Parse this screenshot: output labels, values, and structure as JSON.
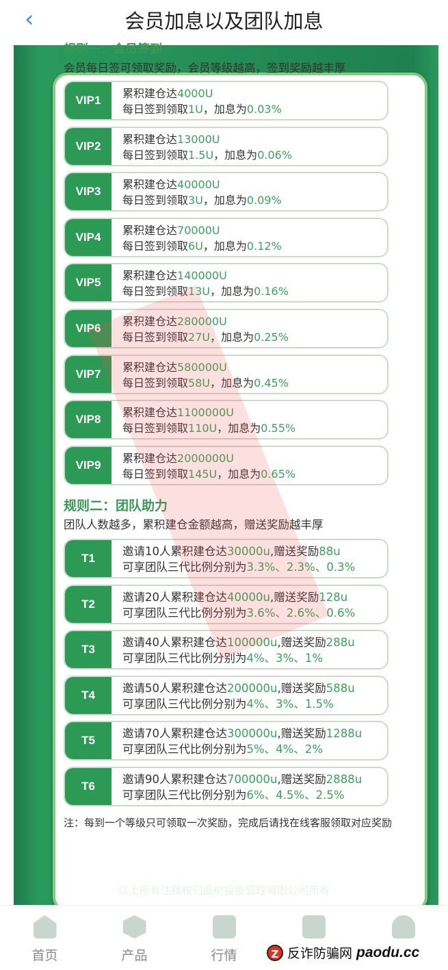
{
  "header": {
    "back_icon": "chevron-left-icon",
    "title": "会员加息以及团队加息"
  },
  "colors": {
    "accent": "#2c9a55",
    "highlight": "#3aa35c",
    "background": "#1f7a4c"
  },
  "rule1": {
    "heading": "规则一：会员签到",
    "desc": "会员每日签可领取奖励，会员等级越高，签到奖励越丰厚",
    "line1_prefix": "累积建仓达",
    "line2_prefix": "每日签到领取",
    "line2_mid": "，加息为",
    "levels": [
      {
        "label": "VIP1",
        "amount": "4000U",
        "reward": "1U",
        "rate": "0.03%"
      },
      {
        "label": "VIP2",
        "amount": "13000U",
        "reward": "1.5U",
        "rate": "0.06%"
      },
      {
        "label": "VIP3",
        "amount": "40000U",
        "reward": "3U",
        "rate": "0.09%"
      },
      {
        "label": "VIP4",
        "amount": "70000U",
        "reward": "6U",
        "rate": "0.12%"
      },
      {
        "label": "VIP5",
        "amount": "140000U",
        "reward": "13U",
        "rate": "0.16%"
      },
      {
        "label": "VIP6",
        "amount": "280000U",
        "reward": "27U",
        "rate": "0.25%"
      },
      {
        "label": "VIP7",
        "amount": "580000U",
        "reward": "58U",
        "rate": "0.45%"
      },
      {
        "label": "VIP8",
        "amount": "1100000U",
        "reward": "110U",
        "rate": "0.55%"
      },
      {
        "label": "VIP9",
        "amount": "2000000U",
        "reward": "145U",
        "rate": "0.65%"
      }
    ]
  },
  "rule2": {
    "heading": "规则二：团队助力",
    "desc": "团队人数越多，累积建仓金额越高，赠送奖励越丰厚",
    "line1_mid": "累积建仓达",
    "line1_bonus": ",赠送奖励",
    "line2_prefix": "可享团队三代比例分别为",
    "tiers": [
      {
        "label": "T1",
        "invite": "邀请10人",
        "amount": "30000u",
        "bonus": "88u",
        "ratios": "3.3%、2.3%、0.3%"
      },
      {
        "label": "T2",
        "invite": "邀请20人",
        "amount": "40000u",
        "bonus": "128u",
        "ratios": "3.6%、2.6%、0.6%"
      },
      {
        "label": "T3",
        "invite": "邀请40人",
        "amount": "100000u",
        "bonus": "288u",
        "ratios": "4%、3%、1%"
      },
      {
        "label": "T4",
        "invite": "邀请50人",
        "amount": "200000u",
        "bonus": "588u",
        "ratios": "4%、3%、1.5%"
      },
      {
        "label": "T5",
        "invite": "邀请70人",
        "amount": "300000u",
        "bonus": "1288u",
        "ratios": "5%、4%、2%"
      },
      {
        "label": "T6",
        "invite": "邀请90人",
        "amount": "700000u",
        "bonus": "2888u",
        "ratios": "6%、4.5%、2.5%"
      }
    ]
  },
  "note": "注：每到一个等级只可领取一次奖励，完成后请找在线客服领取对应奖励",
  "footer": "· 以上所有注释权归盛树投资管理有限公司所有 ·",
  "nav": [
    {
      "label": "首页",
      "icon": "home-icon"
    },
    {
      "label": "产品",
      "icon": "product-icon"
    },
    {
      "label": "行情",
      "icon": "chart-icon"
    },
    {
      "label": "",
      "icon": "news-icon"
    },
    {
      "label": "",
      "icon": "user-icon"
    }
  ],
  "watermark": {
    "logo": "Z",
    "text": "反诈防骗网",
    "site": "paodu.cc"
  }
}
